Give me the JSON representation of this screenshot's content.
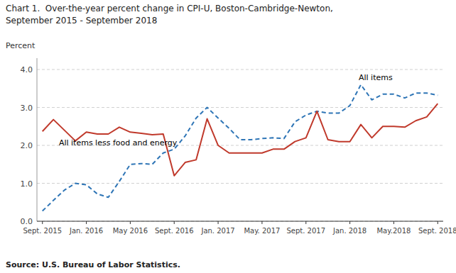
{
  "chart_data": {
    "type": "line",
    "title": "Chart 1.  Over-the-year percent change in CPI-U, Boston-Cambridge-Newton,",
    "subtitle": "September 2015 - September 2018",
    "y_label": "Percent",
    "source": "Source: U.S. Bureau of Labor Statistics.",
    "categories": [
      "Sept. 2015",
      null,
      null,
      null,
      "Jan. 2016",
      null,
      null,
      null,
      "May 2016",
      null,
      null,
      null,
      "Sept. 2016",
      null,
      null,
      null,
      "Jan. 2017",
      null,
      null,
      null,
      "May. 2017",
      null,
      null,
      null,
      "Sept. 2017",
      null,
      null,
      null,
      "Jan. 2018",
      null,
      null,
      null,
      "May.2018",
      null,
      null,
      null,
      "Sept. 2018"
    ],
    "series": [
      {
        "color": "#2e75b6",
        "line_style": "dashed",
        "values": [
          0.27,
          0.55,
          0.82,
          1.0,
          0.96,
          0.72,
          0.63,
          1.05,
          1.5,
          1.52,
          1.5,
          1.8,
          1.9,
          2.25,
          2.72,
          3.0,
          2.72,
          2.45,
          2.15,
          2.15,
          2.18,
          2.2,
          2.18,
          2.62,
          2.8,
          2.9,
          2.85,
          2.85,
          3.05,
          3.6,
          3.2,
          3.35,
          3.35,
          3.25,
          3.38,
          3.38,
          3.32
        ]
      },
      {
        "color": "#c0392b",
        "line_style": "solid",
        "values": [
          2.37,
          2.68,
          2.4,
          2.12,
          2.35,
          2.3,
          2.3,
          2.48,
          2.35,
          2.32,
          2.28,
          2.3,
          1.2,
          1.55,
          1.62,
          2.7,
          2.0,
          1.8,
          1.8,
          1.8,
          1.8,
          1.9,
          1.9,
          2.1,
          2.2,
          2.9,
          2.15,
          2.1,
          2.1,
          2.55,
          2.2,
          2.5,
          2.5,
          2.48,
          2.65,
          2.75,
          3.1
        ]
      }
    ],
    "annotations": [
      {
        "text": "All items",
        "x": 28.8,
        "y": 3.68
      },
      {
        "text": "All items less food and energy",
        "x": 1.5,
        "y": 1.97
      }
    ],
    "ylim": [
      0.0,
      4.3
    ],
    "yticks": [
      {
        "value": 0.0,
        "label": "0.0"
      },
      {
        "value": 1.0,
        "label": "1.0"
      },
      {
        "value": 2.0,
        "label": "2.0"
      },
      {
        "value": 3.0,
        "label": "3.0"
      },
      {
        "value": 4.0,
        "label": "4.0"
      }
    ],
    "grid": true
  }
}
